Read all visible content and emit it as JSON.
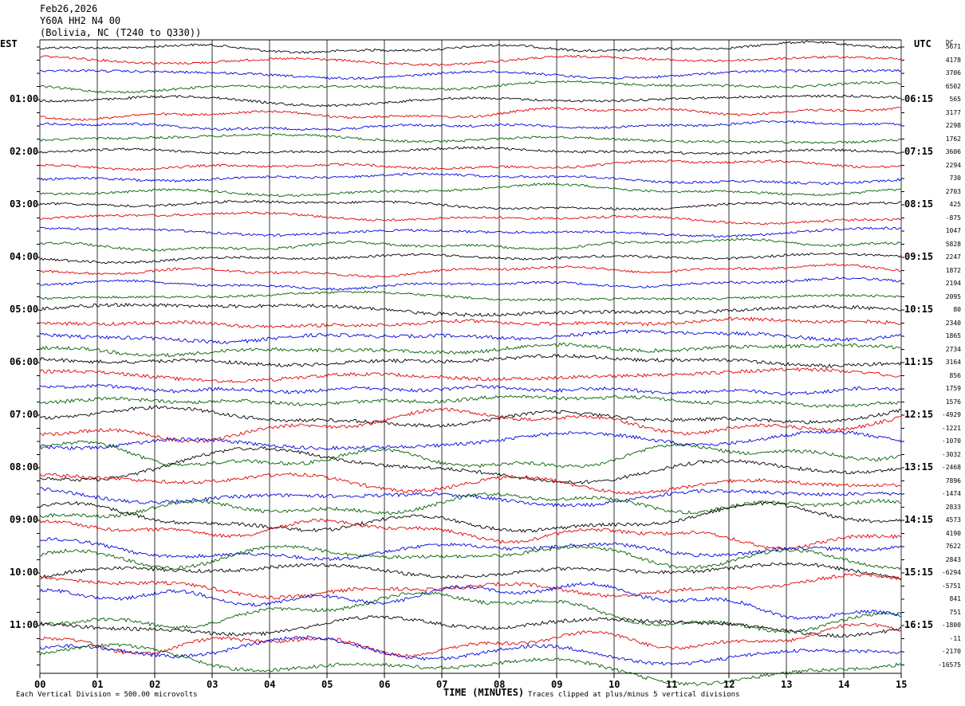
{
  "header": {
    "date": "Feb26,2026",
    "station": "Y60A HH2 N4 00",
    "location": "(Bolivia, NC (T240 to Q330))"
  },
  "left_label": "EST",
  "right_label": "UTC",
  "dc_label": "DC",
  "x_axis_title": "TIME (MINUTES)",
  "footer_left": "Each Vertical Division = 500.00 microvolts",
  "footer_right": "Traces clipped at plus/minus 5 vertical divisions",
  "colors": {
    "trace_cycle": [
      "#000000",
      "#e00000",
      "#0000e0",
      "#006000"
    ],
    "grid": "#000000",
    "background": "#ffffff"
  },
  "chart_data": {
    "type": "line",
    "x_ticks": [
      "00",
      "01",
      "02",
      "03",
      "04",
      "05",
      "06",
      "07",
      "08",
      "09",
      "10",
      "11",
      "12",
      "13",
      "14",
      "15"
    ],
    "xlim": [
      0,
      15
    ],
    "est_hours": [
      "01:00",
      "02:00",
      "03:00",
      "04:00",
      "05:00",
      "06:00",
      "07:00",
      "08:00",
      "09:00",
      "10:00",
      "11:00"
    ],
    "utc_hours": [
      "06:15",
      "07:15",
      "08:15",
      "09:15",
      "10:15",
      "11:15",
      "12:15",
      "13:15",
      "14:15",
      "15:15",
      "16:15"
    ],
    "dc_offsets": [
      "5671",
      "4178",
      "3706",
      "6502",
      "565",
      "3177",
      "2298",
      "1762",
      "3606",
      "2294",
      "730",
      "2703",
      "425",
      "-875",
      "1047",
      "5828",
      "2247",
      "1872",
      "2194",
      "2095",
      "80",
      "2340",
      "1865",
      "2734",
      "3164",
      "856",
      "1759",
      "1576",
      "-4929",
      "-1221",
      "-1070",
      "-3032",
      "-2468",
      "7896",
      "-1474",
      "2833",
      "4573",
      "4190",
      "7622",
      "2843",
      "-6294",
      "-5751",
      "841",
      "751",
      "-1800",
      "-11",
      "-2170",
      "-16575"
    ],
    "trace_colors": [
      "black",
      "red",
      "blue",
      "green"
    ],
    "trace_count": 48,
    "traces_per_hour": 4,
    "minutes_per_trace": 15,
    "vertical_division": "500.00 microvolts"
  }
}
